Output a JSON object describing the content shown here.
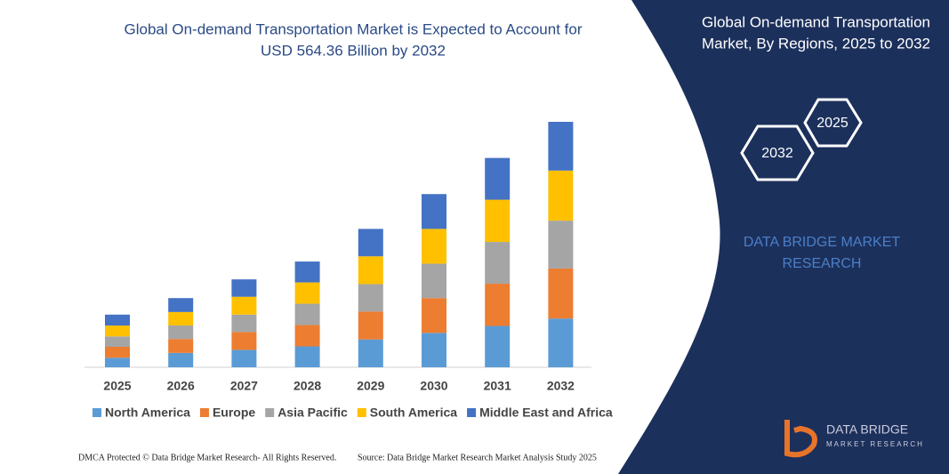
{
  "chart_data": {
    "type": "stacked_bar",
    "title": [
      "Global On-demand Transportation Market is Expected to Account for",
      "USD 564.36 Billion by 2032"
    ],
    "categories": [
      "2025",
      "2026",
      "2027",
      "2028",
      "2029",
      "2030",
      "2031",
      "2032"
    ],
    "series": [
      {
        "name": "North America",
        "color": "#5b9bd5",
        "values": [
          22,
          33,
          40,
          48,
          64,
          79,
          95,
          112
        ]
      },
      {
        "name": "Europe",
        "color": "#ed7d31",
        "values": [
          25,
          32,
          41,
          49,
          64,
          80,
          97,
          115
        ]
      },
      {
        "name": "Asia Pacific",
        "color": "#a5a5a5",
        "values": [
          24,
          31,
          40,
          49,
          63,
          79,
          96,
          110
        ]
      },
      {
        "name": "South America",
        "color": "#ffc000",
        "values": [
          25,
          31,
          41,
          49,
          64,
          80,
          97,
          115
        ]
      },
      {
        "name": "Middle East and Africa",
        "color": "#4472c4",
        "values": [
          25,
          32,
          40,
          48,
          63,
          80,
          96,
          112
        ]
      }
    ],
    "legend": "bottom"
  },
  "panel": {
    "title": [
      "Global On-demand Transportation",
      "Market, By Regions, 2025 to 2032"
    ],
    "hexagons": [
      "2025",
      "2032"
    ],
    "brand": [
      "DATA BRIDGE MARKET",
      "RESEARCH"
    ],
    "logo": [
      "DATA BRIDGE",
      "MARKET RESEARCH"
    ]
  },
  "footer": {
    "left": "DMCA Protected © Data Bridge Market Research- All Rights Reserved.",
    "right": "Source: Data Bridge Market Research Market Analysis Study 2025"
  }
}
